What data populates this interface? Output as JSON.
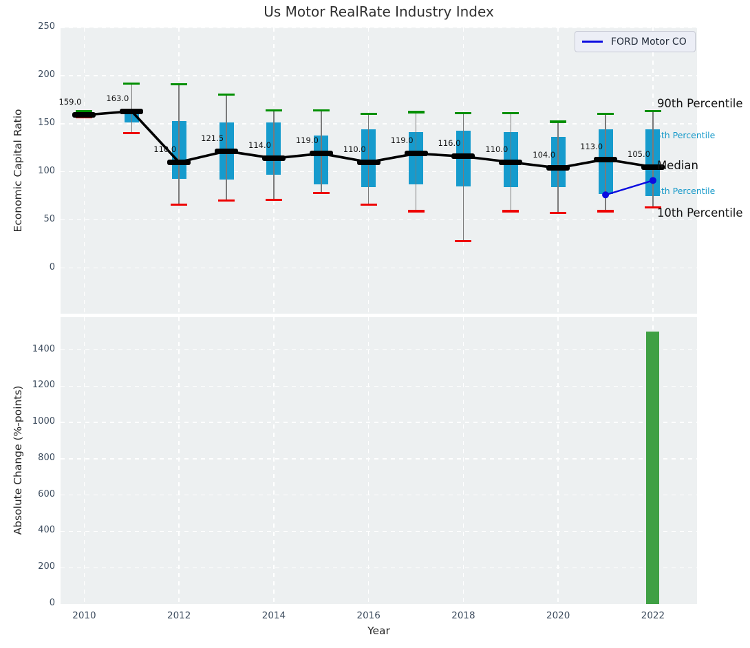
{
  "title": "Us Motor RealRate Industry Index",
  "legend": {
    "label": "FORD Motor CO"
  },
  "colors": {
    "plot_bg": "#edf0f1",
    "grid": "#ffffff",
    "box_fill": "#169bcd",
    "whisker": "#7a7a7a",
    "cap_90th": "#008f00",
    "cap_10th": "#ee0000",
    "median": "#000000",
    "ford_line": "#0b0be0",
    "bar_green": "#3fa044",
    "tick_text": "#3d4c5e",
    "cyan_label": "#1699c9"
  },
  "chart_data": [
    {
      "type": "boxplot+line",
      "title": "Us Motor RealRate Industry Index",
      "ylabel": "Economic Capital Ratio",
      "yticks": [
        0,
        50,
        100,
        150,
        200,
        250
      ],
      "ylim": [
        -47.5,
        250
      ],
      "xlim": [
        2009.5,
        2022.93
      ],
      "grid_years": [
        2010,
        2012,
        2014,
        2016,
        2018,
        2020,
        2022
      ],
      "legend_position": "upper right",
      "boxes": [
        {
          "year": 2010,
          "p90": 163,
          "q75": 161,
          "median": 159,
          "q25": 157.5,
          "p10": 157,
          "label": "159.0"
        },
        {
          "year": 2011,
          "p90": 192,
          "q75": 162,
          "median": 163,
          "q25": 151,
          "p10": 140,
          "label": "163.0"
        },
        {
          "year": 2012,
          "p90": 191,
          "q75": 153,
          "median": 110,
          "q25": 93,
          "p10": 66,
          "label": "110.0"
        },
        {
          "year": 2013,
          "p90": 180,
          "q75": 151,
          "median": 121.5,
          "q25": 92,
          "p10": 70,
          "label": "121.5"
        },
        {
          "year": 2014,
          "p90": 164,
          "q75": 151,
          "median": 114,
          "q25": 97,
          "p10": 71,
          "label": "114.0"
        },
        {
          "year": 2015,
          "p90": 164,
          "q75": 138,
          "median": 119,
          "q25": 87,
          "p10": 78,
          "label": "119.0"
        },
        {
          "year": 2016,
          "p90": 160,
          "q75": 144,
          "median": 110,
          "q25": 84,
          "p10": 66,
          "label": "110.0"
        },
        {
          "year": 2017,
          "p90": 162,
          "q75": 141,
          "median": 119,
          "q25": 87,
          "p10": 59,
          "label": "119.0"
        },
        {
          "year": 2018,
          "p90": 161,
          "q75": 143,
          "median": 116,
          "q25": 85,
          "p10": 28,
          "label": "116.0"
        },
        {
          "year": 2019,
          "p90": 161,
          "q75": 141,
          "median": 110,
          "q25": 84,
          "p10": 59,
          "label": "110.0"
        },
        {
          "year": 2020,
          "p90": 152,
          "q75": 136,
          "median": 104,
          "q25": 84,
          "p10": 57,
          "label": "104.0"
        },
        {
          "year": 2021,
          "p90": 160,
          "q75": 144,
          "median": 113,
          "q25": 77,
          "p10": 59,
          "label": "113.0"
        },
        {
          "year": 2022,
          "p90": 163,
          "q75": 144,
          "median": 105,
          "q25": 75,
          "p10": 63,
          "label": "105.0"
        }
      ],
      "series": [
        {
          "name": "FORD Motor CO",
          "x": [
            2021,
            2022
          ],
          "y": [
            76,
            91
          ]
        }
      ],
      "annotations": [
        {
          "text": "90th Percentile",
          "anchor_value": 170,
          "style": "black"
        },
        {
          "text": "75th Percentile",
          "anchor_value": 138,
          "style": "cyan"
        },
        {
          "text": "Median",
          "anchor_value": 105.5,
          "style": "black"
        },
        {
          "text": "25th Percentile",
          "anchor_value": 79.5,
          "style": "cyan"
        },
        {
          "text": "10th Percentile",
          "anchor_value": 56.5,
          "style": "black"
        }
      ]
    },
    {
      "type": "bar",
      "ylabel": "Absolute Change (%-points)",
      "xlabel": "Year",
      "yticks": [
        0,
        200,
        400,
        600,
        800,
        1000,
        1200,
        1400
      ],
      "ylim": [
        0,
        1580
      ],
      "xlim": [
        2009.5,
        2022.93
      ],
      "xticks": [
        2010,
        2012,
        2014,
        2016,
        2018,
        2020,
        2022
      ],
      "categories": [
        2022
      ],
      "values": [
        1500
      ]
    }
  ]
}
